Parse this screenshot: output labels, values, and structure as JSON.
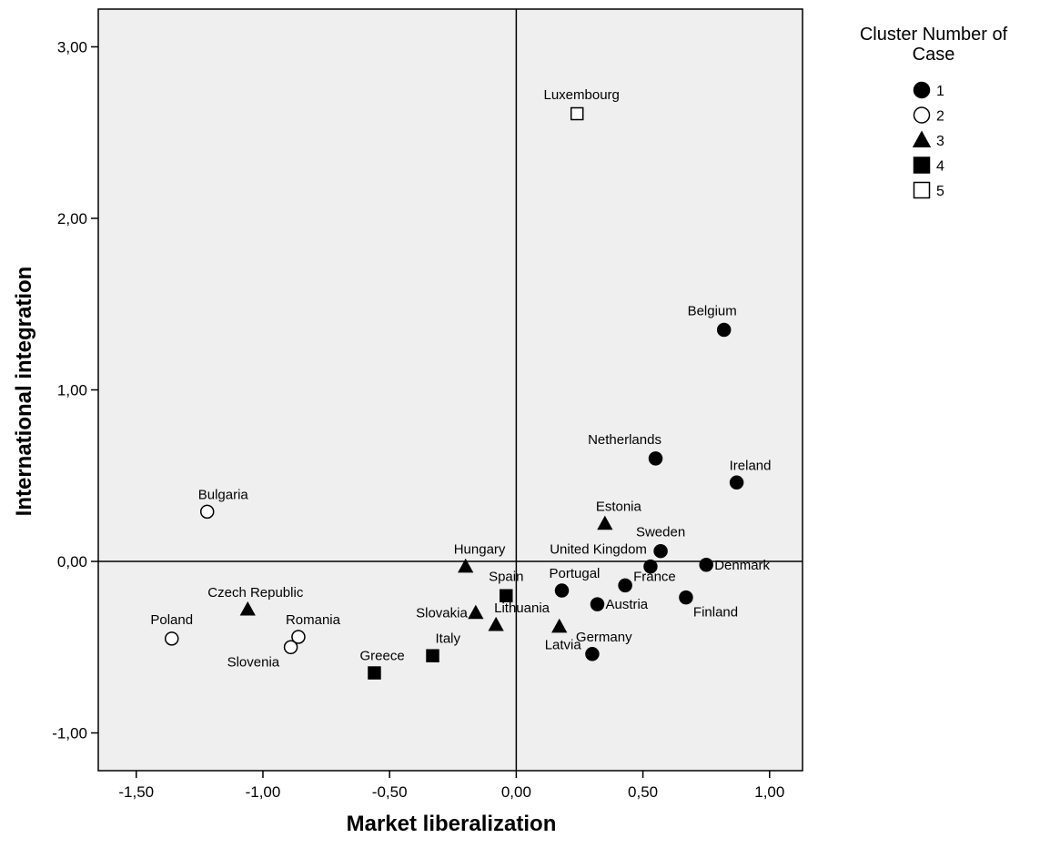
{
  "chart_data": {
    "type": "scatter",
    "xlabel": "Market liberalization",
    "ylabel": "International integration",
    "xlim": [
      -1.65,
      1.13
    ],
    "ylim": [
      -1.22,
      3.22
    ],
    "x_ticks": [
      -1.5,
      -1.0,
      -0.5,
      0.0,
      0.5,
      1.0
    ],
    "x_tick_labels": [
      "-1,50",
      "-1,00",
      "-0,50",
      "0,00",
      "0,50",
      "1,00"
    ],
    "y_ticks": [
      3.0,
      2.0,
      1.0,
      0.0,
      -1.0
    ],
    "y_tick_labels": [
      "3,00",
      "2,00",
      "1,00",
      "0,00",
      "-1,00"
    ],
    "reference_lines": {
      "x": 0,
      "y": 0
    },
    "plot_background": "#efefef",
    "grid": false,
    "legend": {
      "title_lines": [
        "Cluster Number of",
        "Case"
      ],
      "position": "top-right",
      "items": [
        {
          "cluster": 1,
          "label": "1",
          "marker": "filled-circle"
        },
        {
          "cluster": 2,
          "label": "2",
          "marker": "open-circle"
        },
        {
          "cluster": 3,
          "label": "3",
          "marker": "filled-triangle"
        },
        {
          "cluster": 4,
          "label": "4",
          "marker": "filled-square"
        },
        {
          "cluster": 5,
          "label": "5",
          "marker": "open-square"
        }
      ]
    },
    "points": [
      {
        "label": "Luxembourg",
        "x": 0.24,
        "y": 2.61,
        "cluster": 5,
        "label_pos": "above"
      },
      {
        "label": "Belgium",
        "x": 0.82,
        "y": 1.35,
        "cluster": 1,
        "label_pos": "above"
      },
      {
        "label": "Netherlands",
        "x": 0.55,
        "y": 0.6,
        "cluster": 1,
        "label_pos": "above"
      },
      {
        "label": "Ireland",
        "x": 0.87,
        "y": 0.46,
        "cluster": 1,
        "label_pos": "above-right"
      },
      {
        "label": "Estonia",
        "x": 0.35,
        "y": 0.22,
        "cluster": 3,
        "label_pos": "above-right"
      },
      {
        "label": "Sweden",
        "x": 0.57,
        "y": 0.06,
        "cluster": 1,
        "label_pos": "above"
      },
      {
        "label": "United Kingdom",
        "x": 0.53,
        "y": -0.03,
        "cluster": 1,
        "label_pos": "above-left"
      },
      {
        "label": "Denmark",
        "x": 0.75,
        "y": -0.02,
        "cluster": 1,
        "label_pos": "right"
      },
      {
        "label": "France",
        "x": 0.43,
        "y": -0.14,
        "cluster": 1,
        "label_pos": "right-up"
      },
      {
        "label": "Finland",
        "x": 0.67,
        "y": -0.21,
        "cluster": 1,
        "label_pos": "below-right"
      },
      {
        "label": "Portugal",
        "x": 0.18,
        "y": -0.17,
        "cluster": 1,
        "label_pos": "above-right"
      },
      {
        "label": "Austria",
        "x": 0.32,
        "y": -0.25,
        "cluster": 1,
        "label_pos": "right"
      },
      {
        "label": "Germany",
        "x": 0.3,
        "y": -0.54,
        "cluster": 1,
        "label_pos": "above-right"
      },
      {
        "label": "Spain",
        "x": -0.04,
        "y": -0.2,
        "cluster": 4,
        "label_pos": "above"
      },
      {
        "label": "Hungary",
        "x": -0.2,
        "y": -0.03,
        "cluster": 3,
        "label_pos": "above-right"
      },
      {
        "label": "Slovakia",
        "x": -0.16,
        "y": -0.3,
        "cluster": 3,
        "label_pos": "left"
      },
      {
        "label": "Lithuania",
        "x": -0.08,
        "y": -0.37,
        "cluster": 3,
        "label_pos": "above-right"
      },
      {
        "label": "Latvia",
        "x": 0.17,
        "y": -0.38,
        "cluster": 3,
        "label_pos": "below-left"
      },
      {
        "label": "Italy",
        "x": -0.33,
        "y": -0.55,
        "cluster": 4,
        "label_pos": "above-right"
      },
      {
        "label": "Greece",
        "x": -0.56,
        "y": -0.65,
        "cluster": 4,
        "label_pos": "above-right"
      },
      {
        "label": "Czech Republic",
        "x": -1.06,
        "y": -0.28,
        "cluster": 3,
        "label_pos": "above-right"
      },
      {
        "label": "Romania",
        "x": -0.86,
        "y": -0.44,
        "cluster": 2,
        "label_pos": "above-right"
      },
      {
        "label": "Slovenia",
        "x": -0.89,
        "y": -0.5,
        "cluster": 2,
        "label_pos": "below-right"
      },
      {
        "label": "Poland",
        "x": -1.36,
        "y": -0.45,
        "cluster": 2,
        "label_pos": "above"
      },
      {
        "label": "Bulgaria",
        "x": -1.22,
        "y": 0.29,
        "cluster": 2,
        "label_pos": "above-right"
      }
    ]
  }
}
